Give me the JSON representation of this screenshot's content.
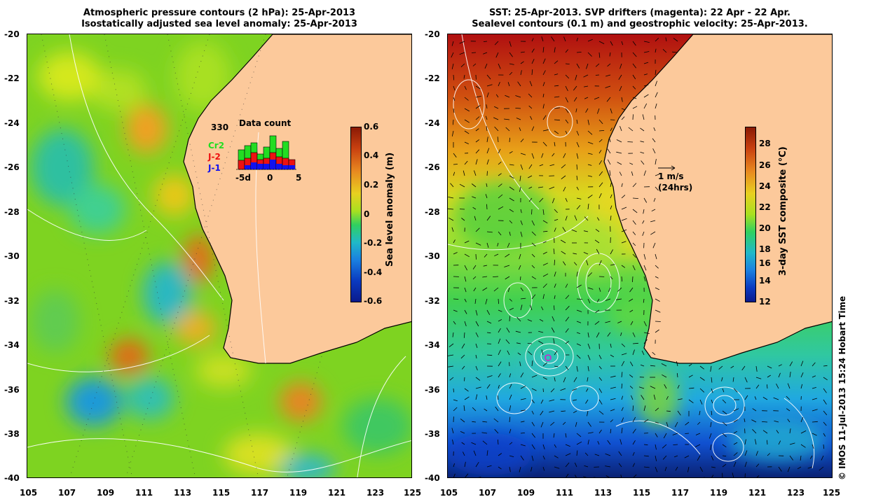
{
  "left_panel": {
    "title_line1": "Atmospheric pressure contours (2 hPa): 25-Apr-2013",
    "title_line2": "Isostatically adjusted sea level anomaly: 25-Apr-2013",
    "colorbar_title": "Sea level anomaly (m)",
    "colorbar_ticks": [
      "0.6",
      "0.4",
      "0.2",
      "0",
      "-0.2",
      "-0.4",
      "-0.6"
    ],
    "data_count": {
      "title": "Data count",
      "max_label": "330",
      "legend": [
        {
          "label": "Cr2",
          "color": "#22dd22"
        },
        {
          "label": "J-2",
          "color": "#ee1111"
        },
        {
          "label": "J-1",
          "color": "#1111ee"
        }
      ],
      "x_ticks": [
        "-5d",
        "0",
        "5"
      ]
    }
  },
  "right_panel": {
    "title_line1": "SST: 25-Apr-2013. SVP drifters (magenta): 22 Apr - 22 Apr.",
    "title_line2": "Sealevel contours (0.1 m) and geostrophic velocity: 25-Apr-2013.",
    "colorbar_title": "3-day SST composite (°C)",
    "colorbar_ticks": [
      "28",
      "26",
      "24",
      "22",
      "20",
      "18",
      "16",
      "14",
      "12"
    ],
    "vector_scale_label": "1 m/s",
    "vector_scale_sub": "(24hrs)"
  },
  "axes": {
    "lat_ticks": [
      "-20",
      "-22",
      "-24",
      "-26",
      "-28",
      "-30",
      "-32",
      "-34",
      "-36",
      "-38",
      "-40"
    ],
    "lon_ticks": [
      "105",
      "107",
      "109",
      "111",
      "113",
      "115",
      "117",
      "119",
      "121",
      "123",
      "125"
    ]
  },
  "copyright": "© IMOS 11-Jul-2013 15:24 Hobart Time",
  "colors": {
    "land": "#fcc99b",
    "sla_low": "#0a1a8c",
    "sla_high": "#8a1a05",
    "sst_warm": "#b01010",
    "sst_cold": "#0a2070"
  }
}
